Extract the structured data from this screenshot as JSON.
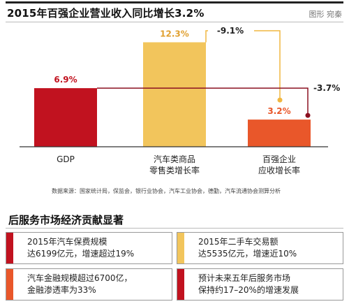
{
  "header": {
    "title": "2015年百强企业营业收入同比增长3.2%",
    "credit": "图形 宛秦"
  },
  "chart_data": {
    "type": "bar",
    "categories": [
      [
        "GDP"
      ],
      [
        "汽车类商品",
        "零售类增长率"
      ],
      [
        "百强企业",
        "应收增长率"
      ]
    ],
    "values": [
      6.9,
      12.3,
      3.2
    ],
    "value_labels": [
      "6.9%",
      "12.3%",
      "3.2%"
    ],
    "bar_colors": [
      "#c1121f",
      "#f2c55c",
      "#e9572a"
    ],
    "label_colors": [
      "#c1121f",
      "#e0a030",
      "#e9572a"
    ],
    "differences": [
      {
        "from": 1,
        "to": 2,
        "label": "-9.1%",
        "color": "#f1b740"
      },
      {
        "from": 0,
        "to": 2,
        "label": "-3.7%",
        "color": "#8b1020"
      }
    ],
    "ylim": [
      0,
      13
    ]
  },
  "source": "数据来源：国家统计局，保监会，银行业协会，汽车工业协会，德勤，汽车流通协会测算分析",
  "section": {
    "title": "后服务市场经济贡献显著",
    "stats": [
      {
        "lines": [
          "2015年汽车保费规模",
          "达6199亿元，增速超过19%"
        ]
      },
      {
        "lines": [
          "2015年二手车交易额",
          "达5535亿元，增速近10%"
        ]
      },
      {
        "lines": [
          "汽车金融规模超过6700亿，",
          "金融渗透率为33%"
        ]
      },
      {
        "lines": [
          "预计未来五年后服务市场",
          "保持约17–20%的增速发展"
        ]
      }
    ]
  },
  "colors": {
    "stat_marks": [
      "#c1121f",
      "#f2c55c",
      "#e9572a",
      "#c1121f"
    ]
  }
}
